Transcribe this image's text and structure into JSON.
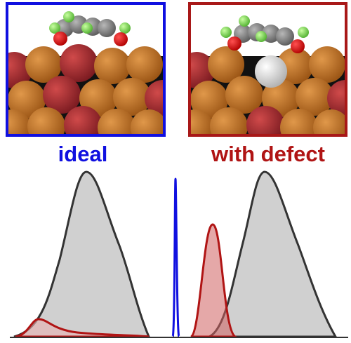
{
  "labels": {
    "ideal": "ideal",
    "with_defect": "with defect"
  }
}
